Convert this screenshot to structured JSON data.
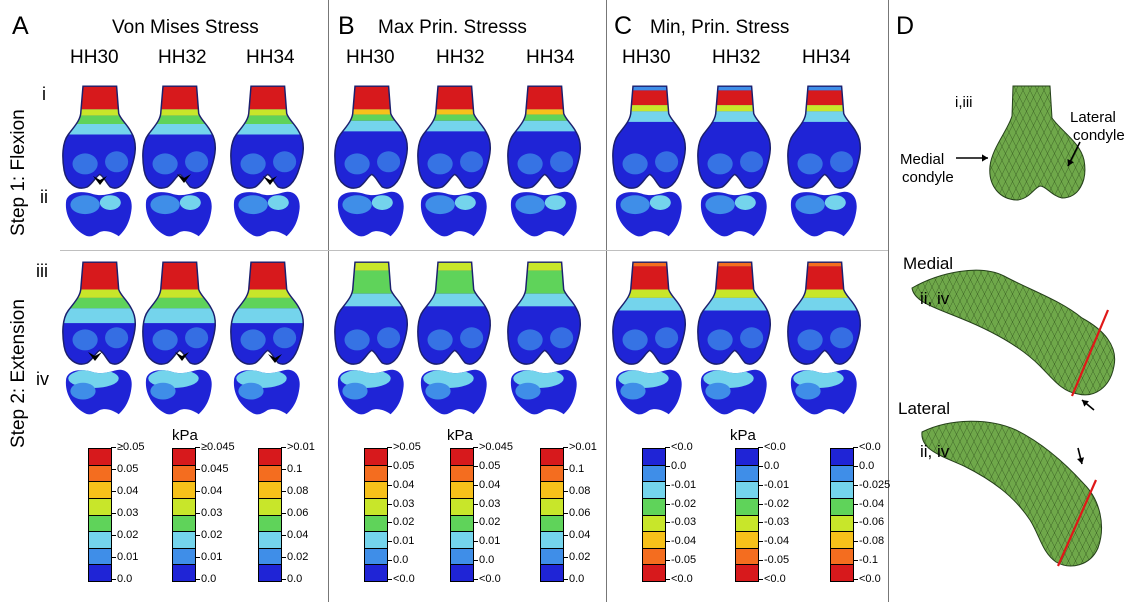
{
  "panels": [
    {
      "letter": "A",
      "title": "Von Mises Stress"
    },
    {
      "letter": "B",
      "title": "Max Prin. Stresss"
    },
    {
      "letter": "C",
      "title": "Min, Prin. Stress"
    },
    {
      "letter": "D",
      "title": ""
    }
  ],
  "column_labels": [
    "HH30",
    "HH32",
    "HH34"
  ],
  "row_labels": [
    "i",
    "ii",
    "iii",
    "iv"
  ],
  "step_labels": [
    "Step 1: Flexion",
    "Step 2: Extension"
  ],
  "unit_label": "kPa",
  "colorbars": [
    [
      "≥0.05",
      "0.05",
      "0.04",
      "0.03",
      "0.02",
      "0.01",
      "0.0"
    ],
    [
      "≥0.045",
      "0.045",
      "0.04",
      "0.03",
      "0.02",
      "0.01",
      "0.0"
    ],
    [
      ">0.01",
      "0.1",
      "0.08",
      "0.06",
      "0.04",
      "0.02",
      "0.0"
    ],
    [
      ">0.05",
      "0.05",
      "0.04",
      "0.03",
      "0.02",
      "0.01",
      "0.0",
      "<0.0"
    ],
    [
      ">0.045",
      "0.05",
      "0.04",
      "0.03",
      "0.02",
      "0.01",
      "0.0",
      "<0.0"
    ],
    [
      ">0.01",
      "0.1",
      "0.08",
      "0.06",
      "0.04",
      "0.02",
      "0.0"
    ],
    [
      "<0.0",
      "0.0",
      "-0.01",
      "-0.02",
      "-0.03",
      "-0.04",
      "-0.05",
      "<0.0"
    ],
    [
      "<0.0",
      "0.0",
      "-0.01",
      "-0.02",
      "-0.03",
      "-0.04",
      "-0.05",
      "<0.0"
    ],
    [
      "<0.0",
      "0.0",
      "-0.025",
      "-0.04",
      "-0.06",
      "-0.08",
      "-0.1",
      "<0.0"
    ]
  ],
  "positive_scale_colors": [
    "#d7191c",
    "#f46d1f",
    "#f7c11a",
    "#c8e62a",
    "#5fd35a",
    "#74d4ec",
    "#3f8ee8",
    "#1f24d6"
  ],
  "negative_scale_colors": [
    "#1f24d6",
    "#3f8ee8",
    "#74d4ec",
    "#5fd35a",
    "#c8e62a",
    "#f7c11a",
    "#f46d1f",
    "#d7191c"
  ],
  "mesh_color": "#6fa84a",
  "cut_line_color": "#e01818",
  "panel_d": {
    "label_i_iii": "i,iii",
    "medial_condyle": [
      "Medial",
      "condyle"
    ],
    "lateral_condyle": [
      "Lateral",
      "condyle"
    ],
    "medial_view": {
      "title": "Medial",
      "subtitle": "ii, iv"
    },
    "lateral_view": {
      "title": "Lateral",
      "subtitle": "ii, iv"
    }
  }
}
